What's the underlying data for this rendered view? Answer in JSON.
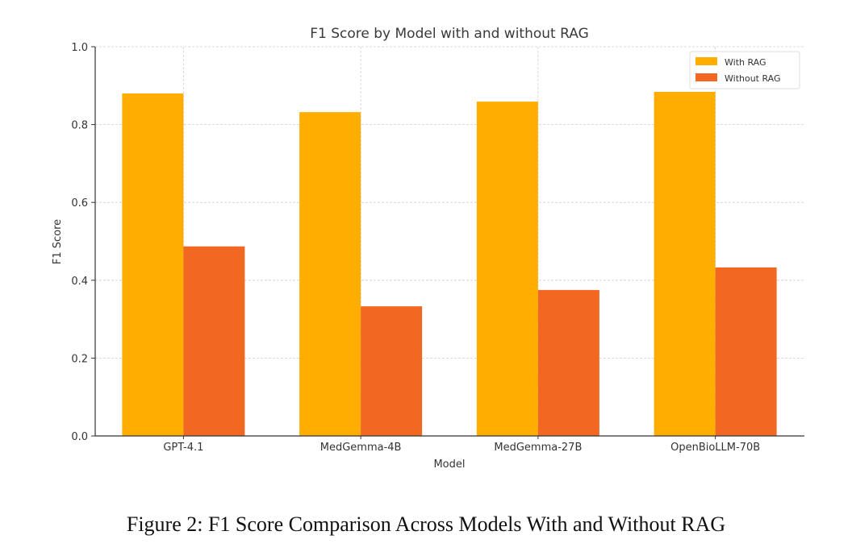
{
  "chart_data": {
    "type": "bar",
    "title": "F1 Score by Model with and without RAG",
    "xlabel": "Model",
    "ylabel": "F1 Score",
    "ylim": [
      0,
      1.0
    ],
    "yticks": [
      "0.0",
      "0.2",
      "0.4",
      "0.6",
      "0.8",
      "1.0"
    ],
    "grid": true,
    "legend_position": "top-right",
    "categories": [
      "GPT-4.1",
      "MedGemma-4B",
      "MedGemma-27B",
      "OpenBioLLM-70B"
    ],
    "series": [
      {
        "name": "With RAG",
        "color": "#FFAE00",
        "values": [
          0.88,
          0.832,
          0.859,
          0.884
        ]
      },
      {
        "name": "Without RAG",
        "color": "#F26722",
        "values": [
          0.487,
          0.333,
          0.375,
          0.433
        ]
      }
    ]
  },
  "caption": "Figure 2: F1 Score Comparison Across Models With and Without RAG"
}
